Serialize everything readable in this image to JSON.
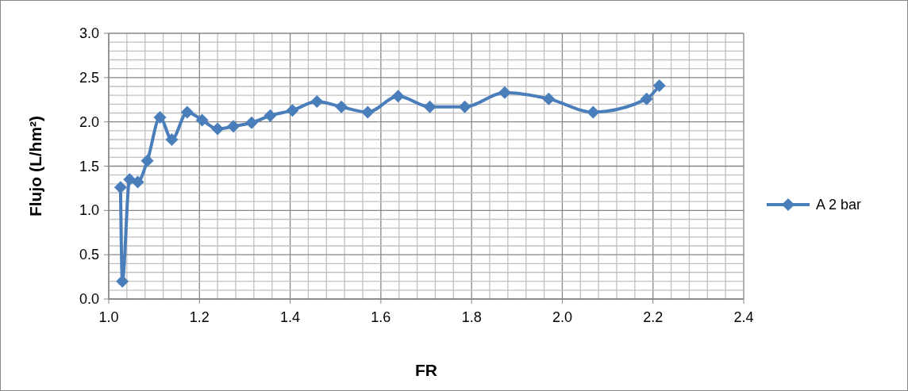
{
  "chart_data": {
    "type": "line",
    "xlabel": "FR",
    "ylabel": "Flujo (L/hm²)",
    "xlim": [
      1.0,
      2.4
    ],
    "xticks": [
      {
        "value": 1.0,
        "label": "1.0"
      },
      {
        "value": 1.2,
        "label": "1.2"
      },
      {
        "value": 1.4,
        "label": "1.4"
      },
      {
        "value": 1.6,
        "label": "1.6"
      },
      {
        "value": 1.8,
        "label": "1.8"
      },
      {
        "value": 2.0,
        "label": "2.0"
      },
      {
        "value": 2.2,
        "label": "2.2"
      },
      {
        "value": 2.4,
        "label": "2.4"
      }
    ],
    "ylim": [
      0,
      3
    ],
    "yticks": [
      {
        "value": 0,
        "label": "0.0"
      },
      {
        "value": 0.5,
        "label": "0.5"
      },
      {
        "value": 1.0,
        "label": "1.0"
      },
      {
        "value": 1.5,
        "label": "1.5"
      },
      {
        "value": 2.0,
        "label": "2.0"
      },
      {
        "value": 2.5,
        "label": "2.5"
      },
      {
        "value": 3.0,
        "label": "3.0"
      }
    ],
    "grid": true,
    "legend": "right",
    "marker": "diamond",
    "line_style": "solid",
    "series": [
      {
        "name": "A 2 bar",
        "color": "#4a7ebb",
        "x": [
          1.026,
          1.03,
          1.046,
          1.064,
          1.085,
          1.113,
          1.139,
          1.173,
          1.206,
          1.24,
          1.275,
          1.315,
          1.356,
          1.405,
          1.459,
          1.513,
          1.571,
          1.638,
          1.708,
          1.785,
          1.873,
          1.97,
          2.068,
          2.186,
          2.214
        ],
        "values": [
          1.26,
          0.2,
          1.35,
          1.32,
          1.56,
          2.05,
          1.8,
          2.11,
          2.02,
          1.92,
          1.95,
          1.99,
          2.07,
          2.13,
          2.23,
          2.17,
          2.11,
          2.29,
          2.17,
          2.17,
          2.33,
          2.26,
          2.11,
          2.26,
          2.41
        ]
      }
    ]
  }
}
